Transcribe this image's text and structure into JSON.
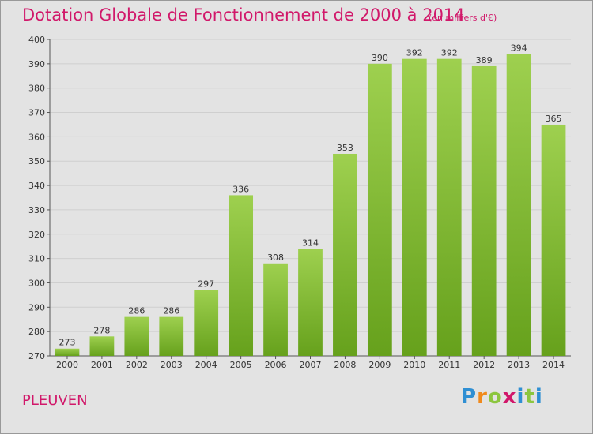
{
  "header": {
    "title": "Dotation Globale de Fonctionnement de 2000 à 2014",
    "subtitle": "(en milliers d'€)"
  },
  "footer": {
    "place": "PLEUVEN",
    "logo": "Proxiti"
  },
  "colors": {
    "bar_light": "#9ed04f",
    "bar_dark": "#66a11c",
    "title": "#d1186a",
    "background": "#e3e3e3",
    "grid": "#cfcfcf"
  },
  "chart_data": {
    "type": "bar",
    "categories": [
      "2000",
      "2001",
      "2002",
      "2003",
      "2004",
      "2005",
      "2006",
      "2007",
      "2008",
      "2009",
      "2010",
      "2011",
      "2012",
      "2013",
      "2014"
    ],
    "values": [
      273,
      278,
      286,
      286,
      297,
      336,
      308,
      314,
      353,
      390,
      392,
      392,
      389,
      394,
      365
    ],
    "ylim": [
      270,
      400
    ],
    "yticks": [
      270,
      280,
      290,
      300,
      310,
      320,
      330,
      340,
      350,
      360,
      370,
      380,
      390,
      400
    ],
    "grid": true,
    "xlabel": "",
    "ylabel": ""
  }
}
